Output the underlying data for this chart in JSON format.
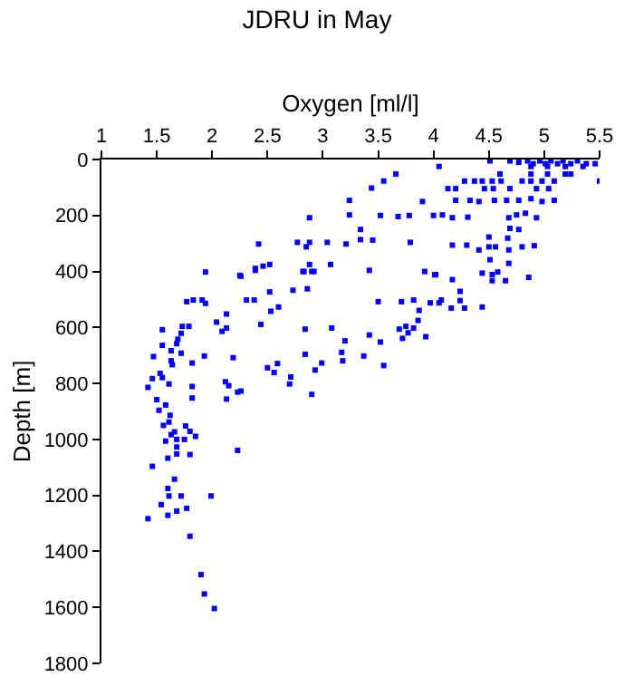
{
  "chart_data": {
    "type": "scatter",
    "title": "JDRU in May",
    "xlabel": "Oxygen [ml/l]",
    "ylabel": "Depth [m]",
    "xlim": [
      1,
      5.5
    ],
    "xticks": [
      1,
      1.5,
      2,
      2.5,
      3,
      3.5,
      4,
      4.5,
      5,
      5.5
    ],
    "ylim": [
      1800,
      0
    ],
    "yticks": [
      0,
      200,
      400,
      600,
      800,
      1000,
      1200,
      1400,
      1600,
      1800
    ],
    "marker": "square",
    "series": [
      {
        "color": "#0000ff",
        "x": [
          4.05,
          4.51,
          3.66,
          3.55,
          3.44,
          3.24,
          3.24,
          3.52,
          3.68,
          3.78,
          2.88,
          3.9,
          4.0,
          4.08,
          4.17,
          4.31,
          3.34,
          3.34,
          3.45,
          3.21,
          3.04,
          2.88,
          2.85,
          2.77,
          2.42,
          3.79,
          4.17,
          4.3,
          4.5,
          4.5,
          4.41,
          4.56,
          4.67,
          4.68,
          4.8,
          4.91,
          2.88,
          2.92,
          3.07,
          2.52,
          2.46,
          2.39,
          2.26,
          1.94,
          2.83,
          3.42,
          3.92,
          4.01,
          4.44,
          4.51,
          4.68,
          4.86,
          4.69,
          4.77,
          4.85,
          4.9,
          4.96,
          5.01,
          5.06,
          5.12,
          5.17,
          5.24,
          5.3,
          5.38,
          5.46,
          4.88,
          5.03,
          5.19,
          5.35,
          4.6,
          4.88,
          5.03,
          5.19,
          5.24,
          5.5,
          4.28,
          4.37,
          4.44,
          4.53,
          4.61,
          4.8,
          4.88,
          4.98,
          5.09,
          4.13,
          4.2,
          4.46,
          4.54,
          4.69,
          4.93,
          5.04,
          4.2,
          4.33,
          4.41,
          4.55,
          4.66,
          4.77,
          4.88,
          4.98,
          5.09,
          4.68,
          4.75,
          4.83,
          4.93,
          4.69,
          4.77,
          2.25,
          1.77,
          1.83,
          1.91,
          1.94,
          2.04,
          2.13,
          2.09,
          2.13,
          1.55,
          1.73,
          1.79,
          1.72,
          1.69,
          1.68,
          1.55,
          1.63,
          1.72,
          1.47,
          1.63,
          1.64,
          1.82,
          1.93,
          2.19,
          1.53,
          1.46,
          1.42,
          1.55,
          1.61,
          1.82,
          2.12,
          2.15,
          2.23,
          2.26,
          2.13,
          1.5,
          1.82,
          1.58,
          1.52,
          1.62,
          1.61,
          1.56,
          1.76,
          1.66,
          1.8,
          1.63,
          1.85,
          1.58,
          1.68,
          1.75,
          1.68,
          1.6,
          1.68,
          1.8,
          2.23,
          1.46,
          1.66,
          1.6,
          1.61,
          1.72,
          1.99,
          1.54,
          1.77,
          1.68,
          1.6,
          1.42,
          1.8,
          1.9,
          1.93,
          2.02,
          2.39,
          2.82,
          2.9,
          2.31,
          2.38,
          2.52,
          2.6,
          2.53,
          2.73,
          2.86,
          2.44,
          2.84,
          3.08,
          3.2,
          3.42,
          3.52,
          3.17,
          3.37,
          3.55,
          3.18,
          2.99,
          2.93,
          2.84,
          2.59,
          2.5,
          2.56,
          2.71,
          2.7,
          2.9,
          3.5,
          3.71,
          3.82,
          3.87,
          3.86,
          3.82,
          3.75,
          3.69,
          3.72,
          3.77,
          3.93,
          3.97,
          4.05,
          4.07,
          4.16,
          4.24,
          4.24,
          4.28,
          4.44,
          4.17,
          4.02,
          4.53,
          4.53,
          4.65,
          4.58
        ],
        "values": [
          25,
          5,
          52,
          77,
          102,
          146,
          198,
          200,
          204,
          200,
          208,
          150,
          200,
          198,
          208,
          206,
          250,
          286,
          288,
          302,
          296,
          296,
          312,
          296,
          302,
          296,
          306,
          306,
          277,
          312,
          323,
          312,
          281,
          323,
          312,
          308,
          375,
          400,
          375,
          375,
          381,
          389,
          417,
          402,
          400,
          396,
          400,
          412,
          406,
          358,
          371,
          421,
          5,
          10,
          5,
          15,
          5,
          15,
          5,
          15,
          5,
          15,
          5,
          15,
          15,
          25,
          25,
          25,
          25,
          52,
          52,
          52,
          52,
          52,
          77,
          77,
          77,
          77,
          77,
          77,
          77,
          77,
          77,
          77,
          104,
          104,
          104,
          104,
          104,
          104,
          104,
          146,
          146,
          150,
          146,
          146,
          146,
          140,
          150,
          146,
          208,
          198,
          192,
          208,
          246,
          250,
          414,
          508,
          502,
          502,
          514,
          581,
          552,
          614,
          602,
          608,
          596,
          596,
          621,
          642,
          658,
          664,
          683,
          692,
          704,
          719,
          733,
          727,
          702,
          708,
          764,
          783,
          814,
          779,
          802,
          811,
          794,
          808,
          831,
          827,
          856,
          858,
          852,
          877,
          896,
          914,
          938,
          950,
          952,
          973,
          971,
          983,
          989,
          1006,
          1000,
          1000,
          1027,
          1067,
          1052,
          1054,
          1039,
          1096,
          1142,
          1175,
          1202,
          1202,
          1202,
          1233,
          1246,
          1256,
          1271,
          1283,
          1346,
          1483,
          1552,
          1604,
          396,
          400,
          400,
          502,
          502,
          473,
          527,
          542,
          467,
          462,
          589,
          606,
          602,
          648,
          627,
          652,
          689,
          702,
          736,
          719,
          727,
          752,
          696,
          729,
          744,
          761,
          777,
          802,
          839,
          508,
          508,
          502,
          539,
          575,
          602,
          596,
          606,
          639,
          619,
          633,
          512,
          512,
          502,
          531,
          471,
          504,
          531,
          527,
          429,
          411,
          411,
          433,
          433,
          402
        ]
      }
    ]
  }
}
